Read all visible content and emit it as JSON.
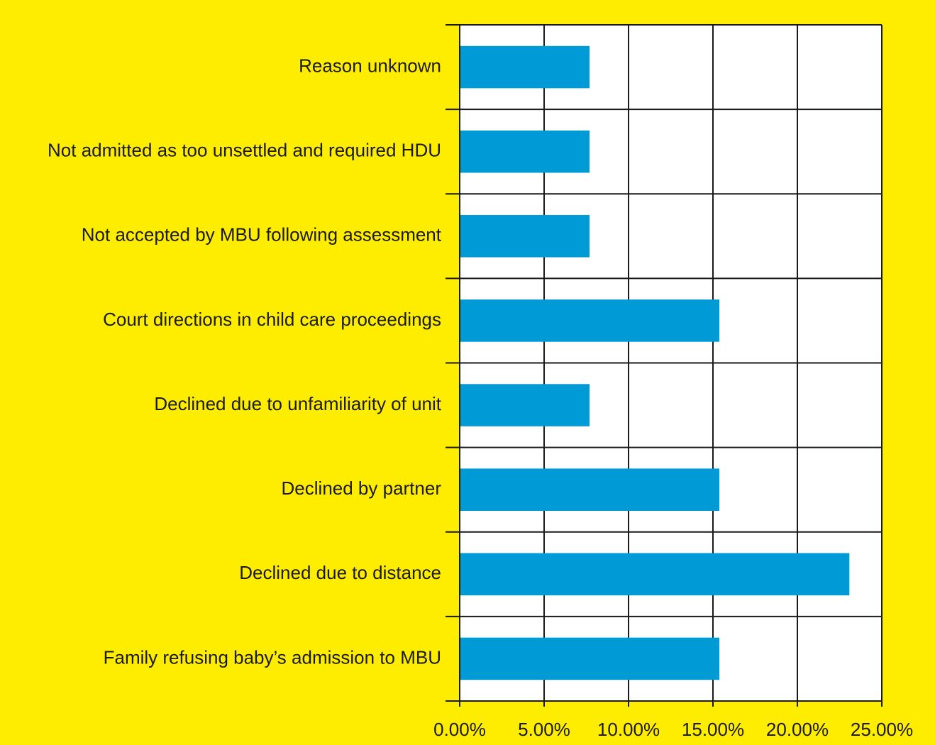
{
  "chart_data": {
    "type": "hbar",
    "categories": [
      "Reason unknown",
      "Not admitted as too unsettled and required HDU",
      "Not accepted by MBU following assessment",
      "Court directions in child care proceedings",
      "Declined due to unfamiliarity of unit",
      "Declined by partner",
      "Declined due to distance",
      "Family refusing baby’s admission to MBU"
    ],
    "values": [
      7.69,
      7.69,
      7.69,
      15.38,
      7.69,
      15.38,
      23.08,
      15.38
    ],
    "color": "#009ad6",
    "xlim": [
      0,
      25
    ],
    "xticks": [
      {
        "value": 0,
        "label": "0.00%"
      },
      {
        "value": 5,
        "label": "5.00%"
      },
      {
        "value": 10,
        "label": "10.00%"
      },
      {
        "value": 15,
        "label": "15.00%"
      },
      {
        "value": 20,
        "label": "20.00%"
      },
      {
        "value": 25,
        "label": "25.00%"
      }
    ],
    "grid": true
  }
}
